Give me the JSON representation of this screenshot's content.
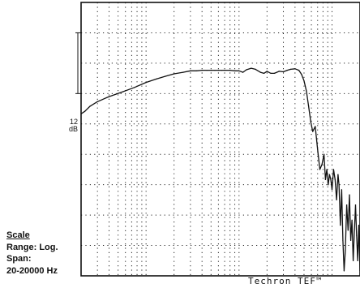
{
  "chart_data": {
    "type": "line",
    "title": "",
    "xlabel": "",
    "ylabel": "",
    "x_scale": "log",
    "xlim": [
      20,
      20000
    ],
    "ylim": [
      -36,
      18
    ],
    "grid": true,
    "reference_bar": {
      "value": "12",
      "unit": "dB",
      "span_db": 12
    },
    "series": [
      {
        "x": [
          20,
          22,
          25,
          30,
          40,
          55,
          75,
          100,
          130,
          160,
          200,
          250,
          300,
          350,
          400,
          450,
          500,
          550,
          600,
          650,
          700,
          800,
          900,
          1000,
          1100,
          1200,
          1350,
          1500,
          1700,
          1850,
          2000,
          2200,
          2400,
          2700,
          3000,
          3300,
          3600,
          4000,
          4400,
          4700,
          5000,
          5300,
          5600,
          5900,
          6200,
          6600,
          7000,
          7400,
          7800,
          8200,
          8500,
          8800,
          9100,
          9400,
          9700,
          10000,
          10400,
          10800,
          11200,
          11600,
          11900,
          12300,
          12700,
          13100,
          13500,
          13900,
          14400,
          14900,
          15400,
          15900,
          16400,
          16900,
          17400,
          17900,
          18400,
          18900,
          19400,
          20000
        ],
        "y": [
          -4,
          -3.5,
          -2.5,
          -1.6,
          -0.6,
          0.3,
          1.2,
          2.2,
          2.9,
          3.4,
          3.9,
          4.2,
          4.5,
          4.5,
          4.6,
          4.6,
          4.6,
          4.6,
          4.6,
          4.6,
          4.6,
          4.6,
          4.5,
          4.5,
          4.2,
          4.7,
          5.0,
          4.8,
          4.2,
          4.0,
          4.4,
          4.0,
          4.0,
          4.4,
          4.3,
          4.6,
          4.8,
          4.9,
          4.6,
          3.8,
          2.5,
          0.5,
          -2.5,
          -5.5,
          -7.5,
          -6.5,
          -11,
          -15,
          -14,
          -12,
          -17,
          -15,
          -18,
          -16,
          -17,
          -19,
          -15,
          -17,
          -21,
          -16,
          -18,
          -26,
          -19,
          -29,
          -35,
          -31,
          -22,
          -27,
          -20,
          -29,
          -25,
          -33,
          -27,
          -22,
          -28,
          -33,
          -26,
          -35
        ]
      }
    ]
  },
  "scale": {
    "title": "Scale",
    "range": "Range: Log.",
    "span_label": "Span:",
    "span_value": "20-20000 Hz"
  },
  "brand": "Techron TEF™"
}
